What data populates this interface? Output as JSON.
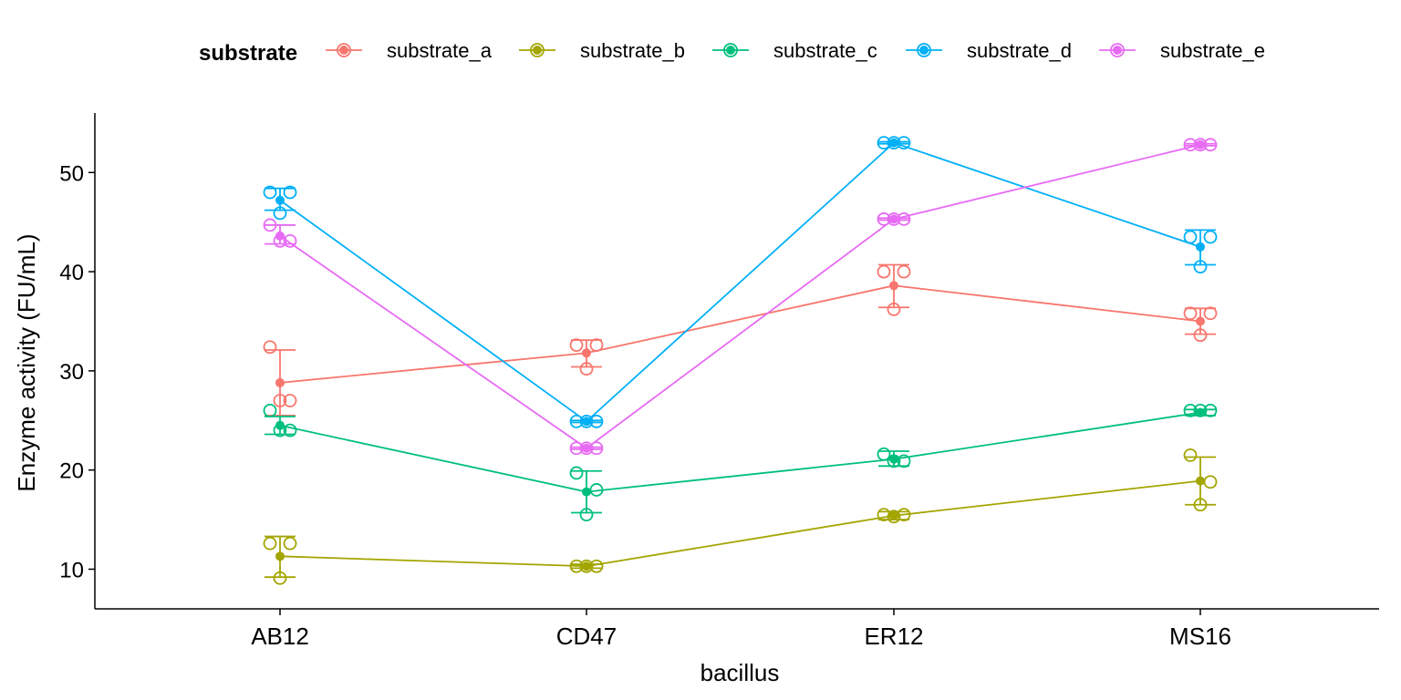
{
  "chart_data": {
    "type": "line",
    "title": "",
    "xlabel": "bacillus",
    "ylabel": "Enzyme activity (FU/mL)",
    "categories": [
      "AB12",
      "CD47",
      "ER12",
      "MS16"
    ],
    "ylim": [
      6,
      56
    ],
    "yticks": [
      10,
      20,
      30,
      40,
      50
    ],
    "grid": false,
    "legend": {
      "title": "substrate",
      "position": "top"
    },
    "series": [
      {
        "name": "substrate_a",
        "color": "#F8766D",
        "mean": [
          28.8,
          31.8,
          38.6,
          35.0
        ],
        "error": [
          [
            25.5,
            32.1
          ],
          [
            30.4,
            33.1
          ],
          [
            36.4,
            40.7
          ],
          [
            33.7,
            36.3
          ]
        ],
        "points": [
          [
            32.4,
            27.0,
            27.0
          ],
          [
            32.6,
            32.6,
            30.2
          ],
          [
            40.0,
            40.0,
            36.2
          ],
          [
            35.8,
            35.8,
            33.6
          ]
        ]
      },
      {
        "name": "substrate_b",
        "color": "#A3A500",
        "mean": [
          11.3,
          10.3,
          15.4,
          18.9
        ],
        "error": [
          [
            9.2,
            13.3
          ],
          [
            10.1,
            10.5
          ],
          [
            15.0,
            15.8
          ],
          [
            16.5,
            21.3
          ]
        ],
        "points": [
          [
            12.6,
            12.6,
            9.1
          ],
          [
            10.3,
            10.3,
            10.3
          ],
          [
            15.5,
            15.5,
            15.3
          ],
          [
            21.5,
            18.8,
            16.5
          ]
        ]
      },
      {
        "name": "substrate_c",
        "color": "#00BF7D",
        "mean": [
          24.5,
          17.8,
          21.1,
          25.8
        ],
        "error": [
          [
            23.6,
            25.4
          ],
          [
            15.7,
            19.9
          ],
          [
            20.4,
            21.9
          ],
          [
            25.5,
            26.1
          ]
        ],
        "points": [
          [
            26.0,
            24.0,
            24.0
          ],
          [
            19.7,
            18.0,
            15.5
          ],
          [
            21.6,
            20.9,
            20.9
          ],
          [
            26.0,
            26.0,
            26.0
          ]
        ]
      },
      {
        "name": "substrate_d",
        "color": "#00B0F6",
        "mean": [
          47.2,
          24.9,
          53.0,
          42.5
        ],
        "error": [
          [
            46.2,
            48.4
          ],
          [
            24.8,
            25.0
          ],
          [
            52.9,
            53.1
          ],
          [
            40.7,
            44.2
          ]
        ],
        "points": [
          [
            48.0,
            48.0,
            45.9
          ],
          [
            24.9,
            24.9,
            24.9
          ],
          [
            53.0,
            53.0,
            53.0
          ],
          [
            43.5,
            43.5,
            40.5
          ]
        ]
      },
      {
        "name": "substrate_e",
        "color": "#E76BF3",
        "mean": [
          43.6,
          22.2,
          45.3,
          52.8
        ],
        "error": [
          [
            42.8,
            44.7
          ],
          [
            22.1,
            22.3
          ],
          [
            45.2,
            45.4
          ],
          [
            52.7,
            52.9
          ]
        ],
        "points": [
          [
            44.7,
            43.1,
            43.1
          ],
          [
            22.2,
            22.2,
            22.2
          ],
          [
            45.3,
            45.3,
            45.3
          ],
          [
            52.8,
            52.8,
            52.8
          ]
        ]
      }
    ]
  }
}
